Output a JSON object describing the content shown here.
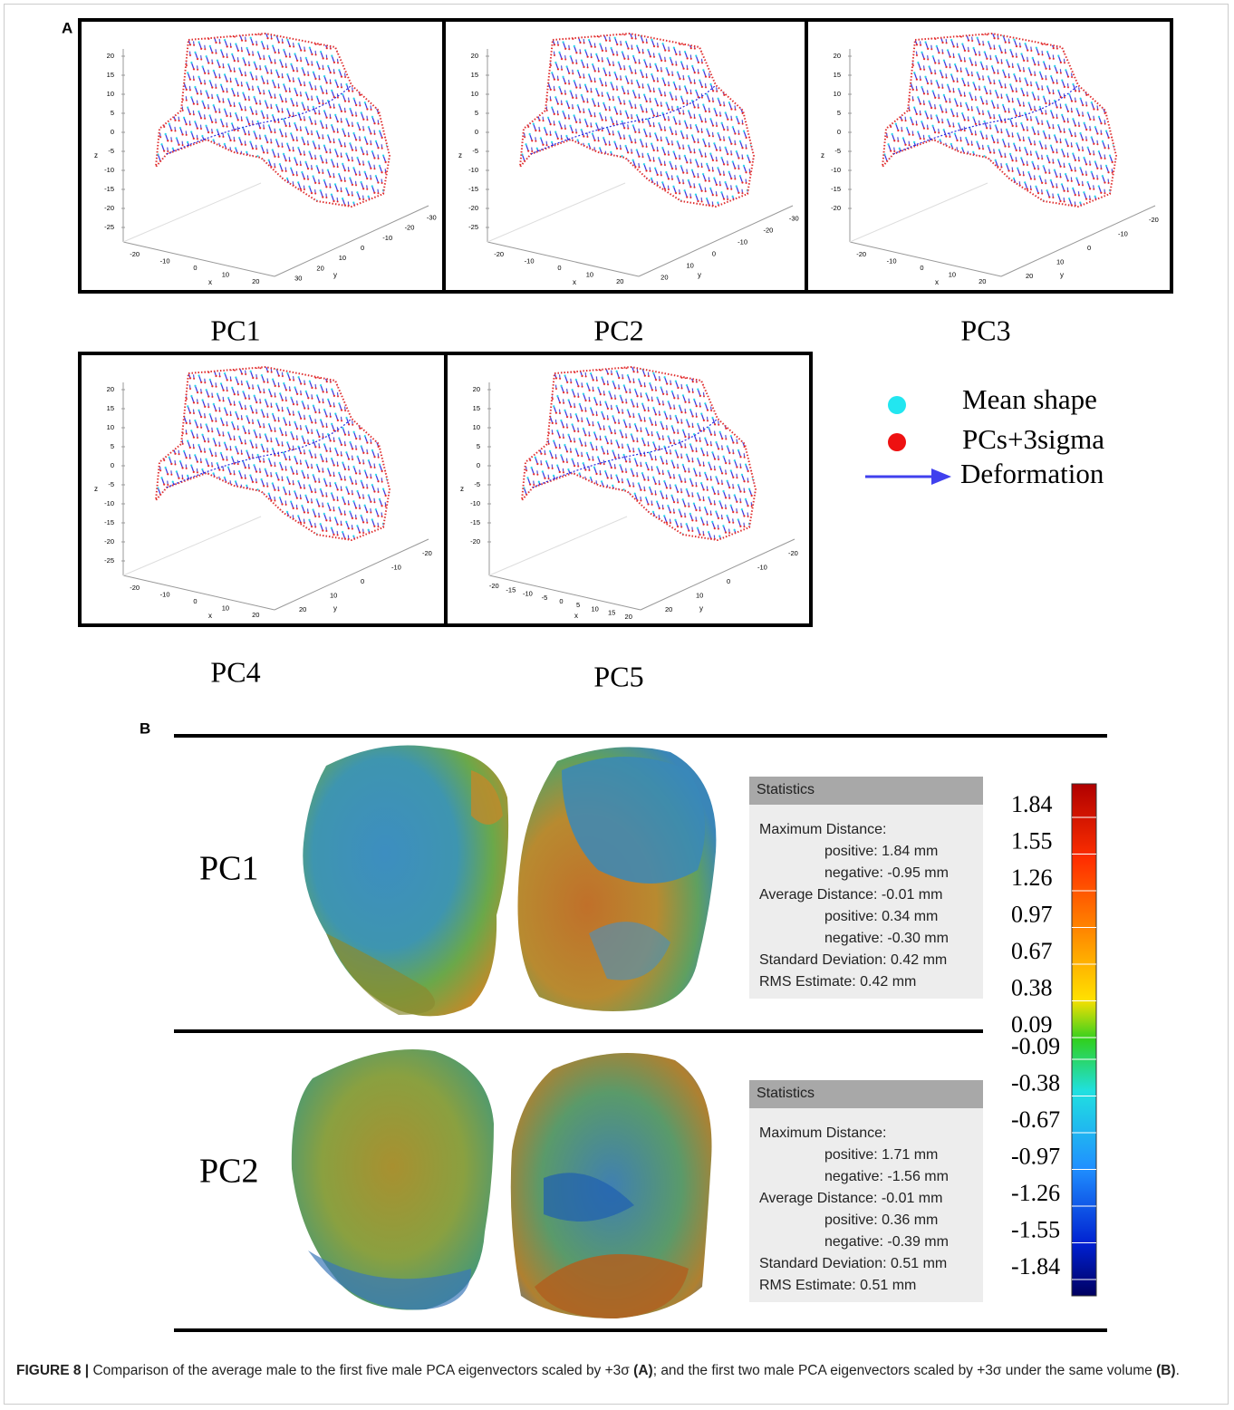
{
  "panel_a": {
    "label": "A",
    "plots": [
      {
        "title": "PC1",
        "z_axis": "z",
        "x_axis": "x",
        "y_axis": "y",
        "z_ticks": [
          20,
          15,
          10,
          5,
          0,
          -5,
          -10,
          -15,
          -20,
          -25
        ],
        "x_ticks": [
          -20,
          -10,
          0,
          10,
          20
        ],
        "y_ticks": [
          30,
          20,
          10,
          0,
          -10,
          -20,
          -30
        ]
      },
      {
        "title": "PC2",
        "z_axis": "z",
        "x_axis": "x",
        "y_axis": "y",
        "z_ticks": [
          20,
          15,
          10,
          5,
          0,
          -5,
          -10,
          -15,
          -20,
          -25
        ],
        "x_ticks": [
          -20,
          -10,
          0,
          10,
          20
        ],
        "y_ticks": [
          20,
          10,
          0,
          -10,
          -20,
          -30
        ]
      },
      {
        "title": "PC3",
        "z_axis": "z",
        "x_axis": "x",
        "y_axis": "y",
        "z_ticks": [
          20,
          15,
          10,
          5,
          0,
          -5,
          -10,
          -15,
          -20
        ],
        "x_ticks": [
          -20,
          -10,
          0,
          10,
          20
        ],
        "y_ticks": [
          20,
          10,
          0,
          -10,
          -20
        ]
      },
      {
        "title": "PC4",
        "z_axis": "z",
        "x_axis": "x",
        "y_axis": "y",
        "z_ticks": [
          20,
          15,
          10,
          5,
          0,
          -5,
          -10,
          -15,
          -20,
          -25
        ],
        "x_ticks": [
          -20,
          -10,
          0,
          10,
          20
        ],
        "y_ticks": [
          20,
          10,
          0,
          -10,
          -20
        ]
      },
      {
        "title": "PC5",
        "z_axis": "z",
        "x_axis": "x",
        "y_axis": "y",
        "z_ticks": [
          20,
          15,
          10,
          5,
          0,
          -5,
          -10,
          -15,
          -20
        ],
        "x_ticks": [
          -20,
          -15,
          -10,
          -5,
          0,
          5,
          10,
          15,
          20
        ],
        "y_ticks": [
          20,
          10,
          0,
          -10,
          -20
        ]
      }
    ],
    "legend": [
      "Mean shape",
      "PCs+3sigma",
      "Deformation"
    ]
  },
  "panel_b": {
    "label": "B",
    "rows": [
      {
        "title": "PC1",
        "statistics": {
          "header": "Statistics",
          "lines": [
            "Maximum Distance:",
            "positive: 1.84 mm",
            "negative: -0.95 mm",
            "Average Distance: -0.01 mm",
            "positive: 0.34 mm",
            "negative: -0.30 mm",
            "Standard Deviation: 0.42 mm",
            "RMS Estimate: 0.42 mm"
          ]
        }
      },
      {
        "title": "PC2",
        "statistics": {
          "header": "Statistics",
          "lines": [
            "Maximum Distance:",
            "positive: 1.71 mm",
            "negative: -1.56 mm",
            "Average Distance: -0.01 mm",
            "positive: 0.36 mm",
            "negative: -0.39 mm",
            "Standard Deviation: 0.51 mm",
            "RMS Estimate: 0.51 mm"
          ]
        }
      }
    ],
    "color_scale": [
      1.84,
      1.55,
      1.26,
      0.97,
      0.67,
      0.38,
      0.09,
      -0.09,
      -0.38,
      -0.67,
      -0.97,
      -1.26,
      -1.55,
      -1.84
    ]
  },
  "caption": {
    "figure": "FIGURE 8 |",
    "text_1": " Comparison of the average male to the first five male PCA eigenvectors scaled by +3σ ",
    "ref_a": "(A)",
    "text_2": "; and the first two male PCA eigenvectors scaled by +3σ under the same volume ",
    "ref_b": "(B)",
    "text_3": "."
  }
}
